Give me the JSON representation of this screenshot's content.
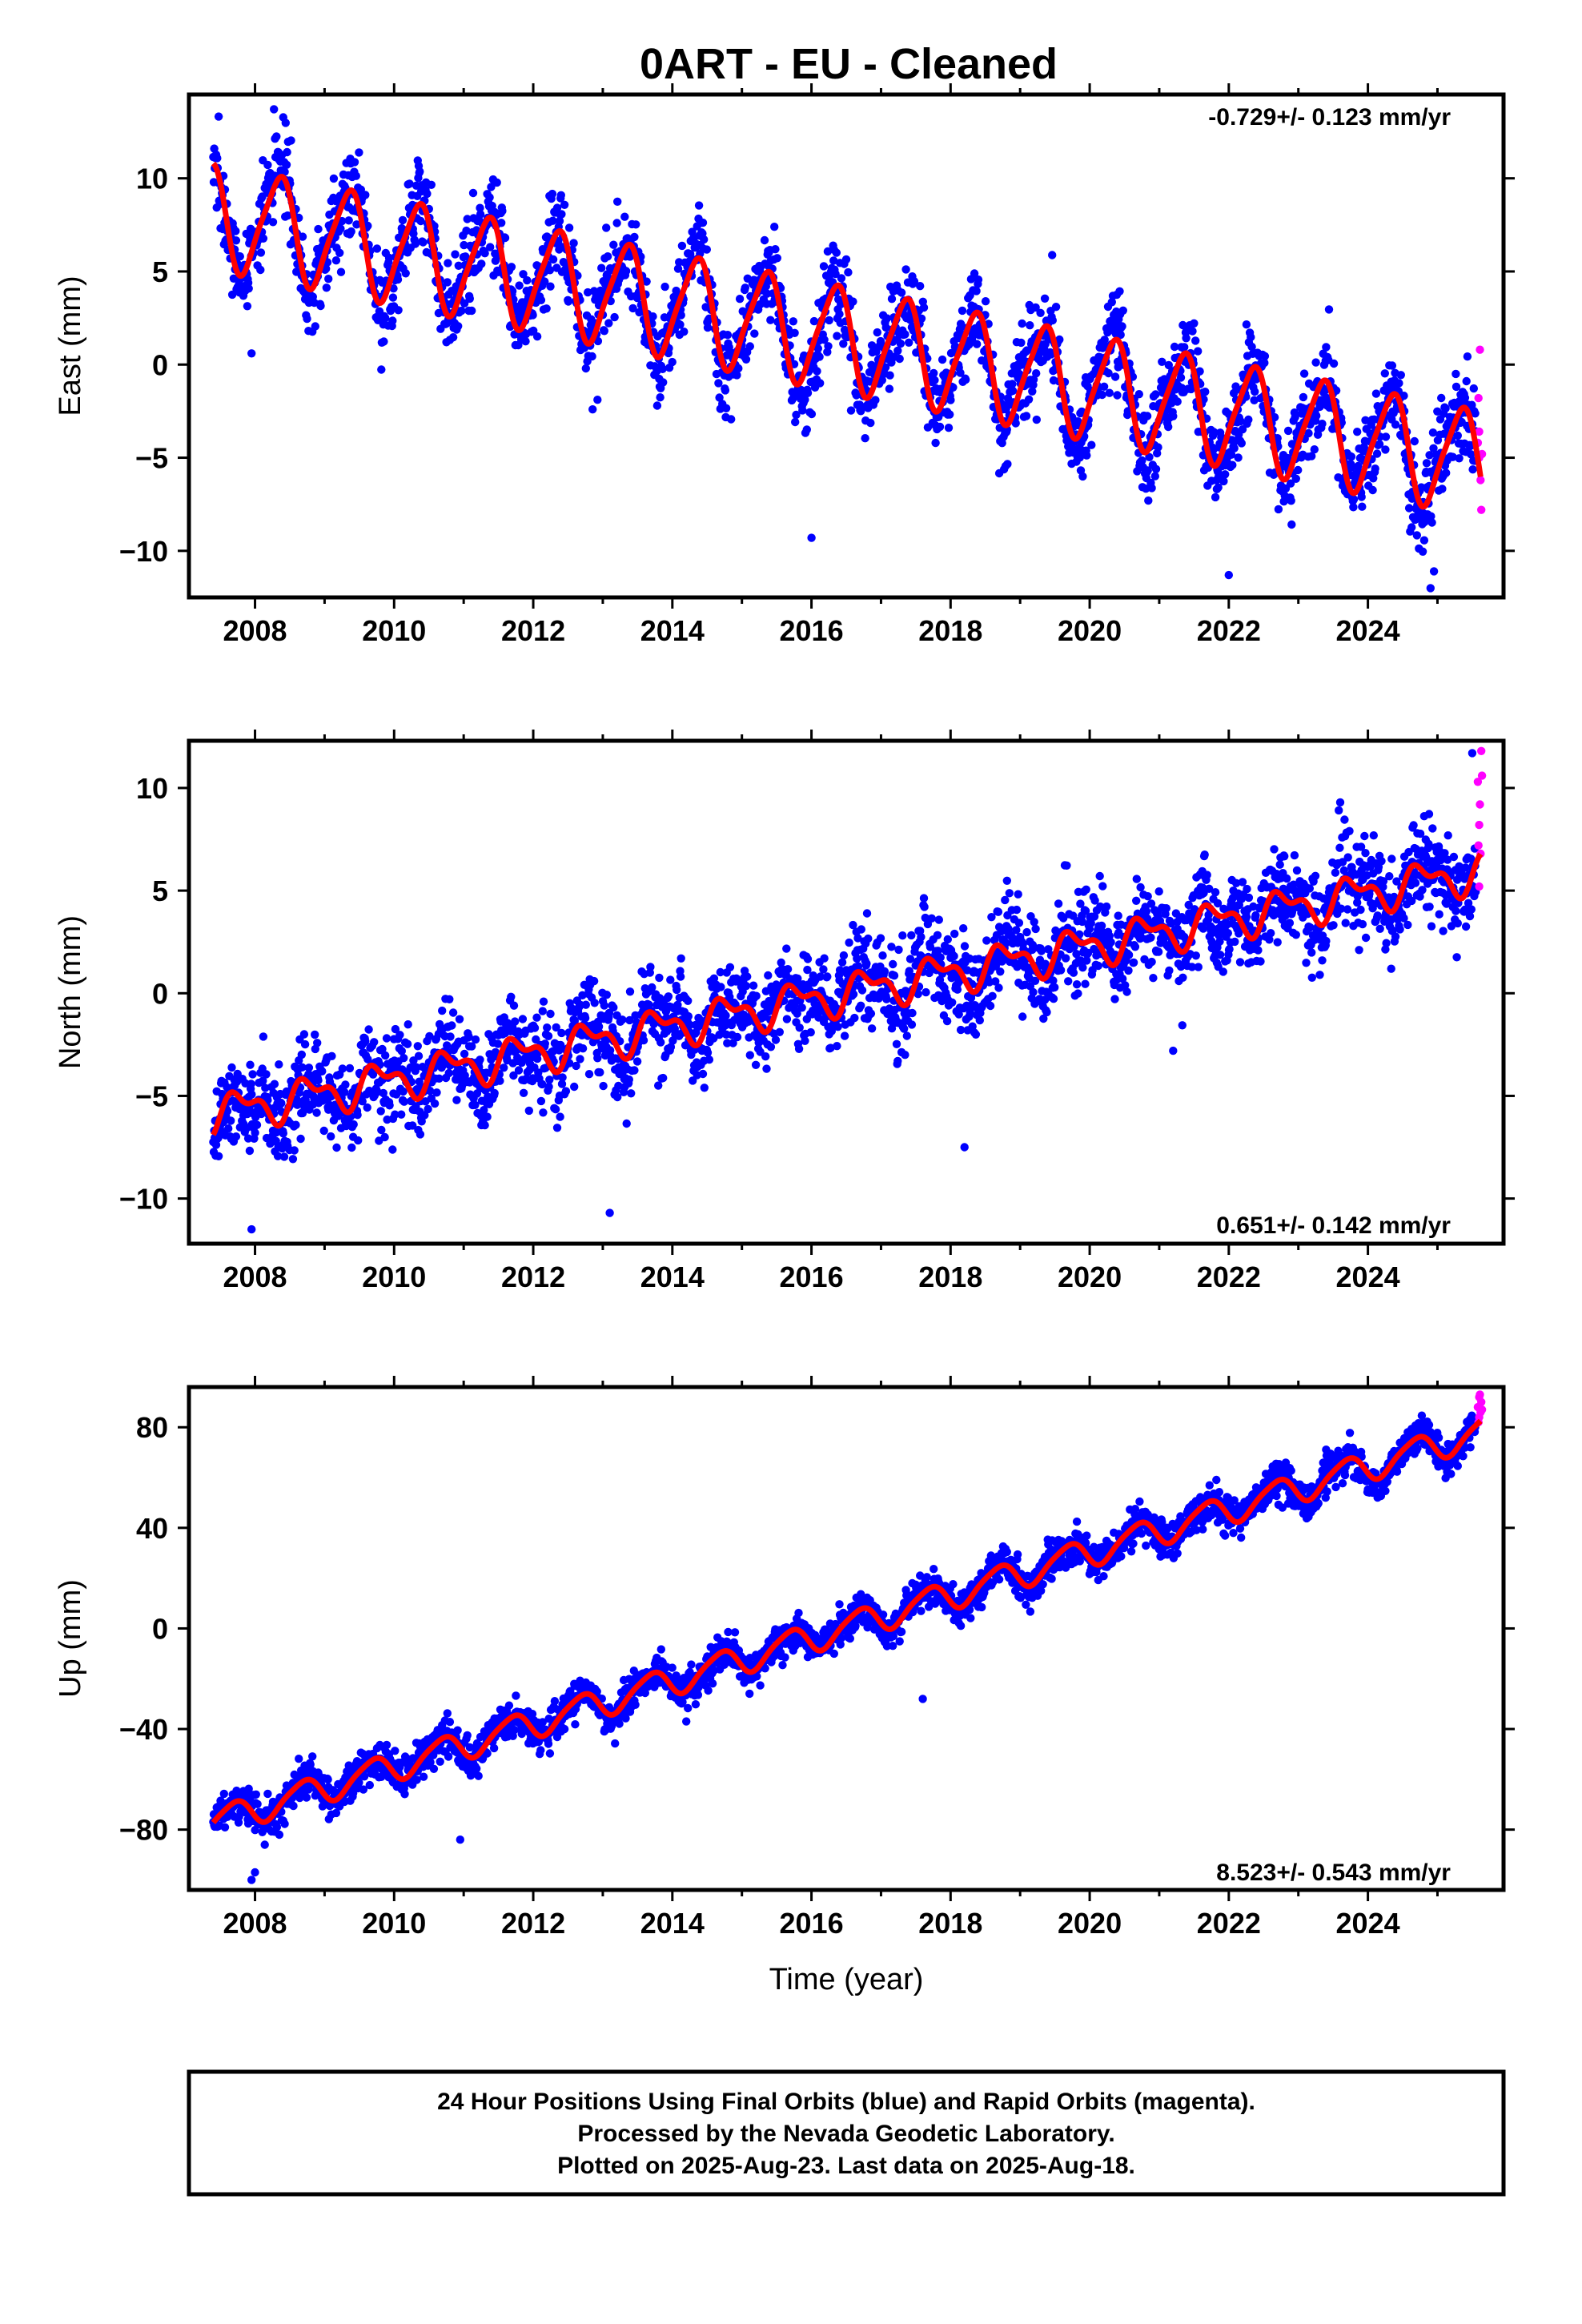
{
  "title": "0ART  - EU - Cleaned",
  "xlabel": "Time (year)",
  "footer": {
    "line1": "24 Hour Positions Using Final Orbits (blue) and Rapid Orbits (magenta).",
    "line2": "Processed by the Nevada Geodetic Laboratory.",
    "line3": "Plotted on 2025-Aug-23. Last data on 2025-Aug-18."
  },
  "colors": {
    "final_orbits": "#0000ff",
    "rapid_orbits": "#ff00ff",
    "model_fit": "#ff0000",
    "frame": "#000000"
  },
  "chart_data": [
    {
      "type": "scatter",
      "ylabel": "East (mm)",
      "rate_label": "-0.729+/- 0.123 mm/yr",
      "xlim": [
        2007.05,
        2025.95
      ],
      "ylim": [
        -12.5,
        14.5
      ],
      "xticks": [
        2008,
        2010,
        2012,
        2014,
        2016,
        2018,
        2020,
        2022,
        2024
      ],
      "yticks": [
        10,
        5,
        0,
        -5,
        -10
      ],
      "ytick_labels": [
        "10",
        "5",
        "0",
        "−5",
        "−10"
      ],
      "grid": false,
      "series": [
        {
          "role": "final_orbits",
          "data_span": [
            2007.4,
            2025.55
          ],
          "fit_model": {
            "t0": 2007.4,
            "intercept": 8.0,
            "rate": -0.729,
            "annual_cos": 2.5,
            "annual_sin": -1.1,
            "semiannual_cos": 0.3,
            "semiannual_sin": 0.4
          },
          "noise_sigma": 1.2,
          "outliers": [
            [
              2007.95,
              0.6
            ],
            [
              2016.0,
              -9.3
            ],
            [
              2022.0,
              -11.3
            ],
            [
              2024.9,
              -12.0
            ],
            [
              2024.95,
              -11.1
            ]
          ]
        },
        {
          "role": "rapid_orbits",
          "points": [
            [
              2025.58,
              -4.2
            ],
            [
              2025.6,
              -5.0
            ],
            [
              2025.62,
              -6.2
            ],
            [
              2025.6,
              -3.6
            ],
            [
              2025.63,
              -7.8
            ],
            [
              2025.61,
              0.8
            ],
            [
              2025.59,
              -1.8
            ],
            [
              2025.64,
              -4.8
            ]
          ]
        },
        {
          "role": "model_fit",
          "fit_span": [
            2007.4,
            2025.62
          ]
        }
      ]
    },
    {
      "type": "scatter",
      "ylabel": "North (mm)",
      "rate_label": "0.651+/- 0.142 mm/yr",
      "xlim": [
        2007.05,
        2025.95
      ],
      "ylim": [
        -12.2,
        12.3
      ],
      "xticks": [
        2008,
        2010,
        2012,
        2014,
        2016,
        2018,
        2020,
        2022,
        2024
      ],
      "yticks": [
        10,
        5,
        0,
        -5,
        -10
      ],
      "ytick_labels": [
        "10",
        "5",
        "0",
        "−5",
        "−10"
      ],
      "grid": false,
      "series": [
        {
          "role": "final_orbits",
          "data_span": [
            2007.4,
            2025.55
          ],
          "fit_model": {
            "t0": 2007.4,
            "intercept": -5.9,
            "rate": 0.651,
            "annual_cos": -0.6,
            "annual_sin": 0.5,
            "semiannual_cos": -0.4,
            "semiannual_sin": 0.2
          },
          "noise_sigma": 1.1,
          "outliers": [
            [
              2007.95,
              -11.5
            ],
            [
              2013.1,
              -10.7
            ],
            [
              2018.2,
              -7.5
            ],
            [
              2021.2,
              -2.8
            ],
            [
              2025.5,
              11.7
            ]
          ]
        },
        {
          "role": "rapid_orbits",
          "points": [
            [
              2025.58,
              10.3
            ],
            [
              2025.6,
              8.2
            ],
            [
              2025.62,
              6.8
            ],
            [
              2025.6,
              5.2
            ],
            [
              2025.63,
              11.8
            ],
            [
              2025.61,
              9.2
            ],
            [
              2025.59,
              7.2
            ],
            [
              2025.64,
              10.6
            ]
          ]
        },
        {
          "role": "model_fit",
          "fit_span": [
            2007.4,
            2025.62
          ]
        }
      ]
    },
    {
      "type": "scatter",
      "ylabel": "Up (mm)",
      "rate_label": "8.523+/- 0.543 mm/yr",
      "xlim": [
        2007.05,
        2025.95
      ],
      "ylim": [
        -104,
        96
      ],
      "xticks": [
        2008,
        2010,
        2012,
        2014,
        2016,
        2018,
        2020,
        2022,
        2024
      ],
      "yticks": [
        80,
        40,
        0,
        -40,
        -80
      ],
      "ytick_labels": [
        "80",
        "40",
        "0",
        "−40",
        "−80"
      ],
      "grid": false,
      "series": [
        {
          "role": "final_orbits",
          "data_span": [
            2007.4,
            2025.55
          ],
          "fit_model": {
            "t0": 2007.4,
            "intercept": -77.0,
            "rate": 8.523,
            "annual_cos": -1.0,
            "annual_sin": 5.5,
            "semiannual_cos": 0.8,
            "semiannual_sin": -0.6
          },
          "noise_sigma": 3.6,
          "outliers": [
            [
              2007.95,
              -100
            ],
            [
              2008.0,
              -97
            ],
            [
              2010.95,
              -84
            ],
            [
              2014.2,
              -37
            ],
            [
              2017.6,
              -28
            ]
          ]
        },
        {
          "role": "rapid_orbits",
          "points": [
            [
              2025.58,
              88
            ],
            [
              2025.6,
              92
            ],
            [
              2025.62,
              86
            ],
            [
              2025.6,
              84
            ],
            [
              2025.63,
              90
            ],
            [
              2025.61,
              93
            ],
            [
              2025.59,
              82
            ],
            [
              2025.64,
              87
            ]
          ]
        },
        {
          "role": "model_fit",
          "fit_span": [
            2007.4,
            2025.62
          ]
        }
      ]
    }
  ]
}
